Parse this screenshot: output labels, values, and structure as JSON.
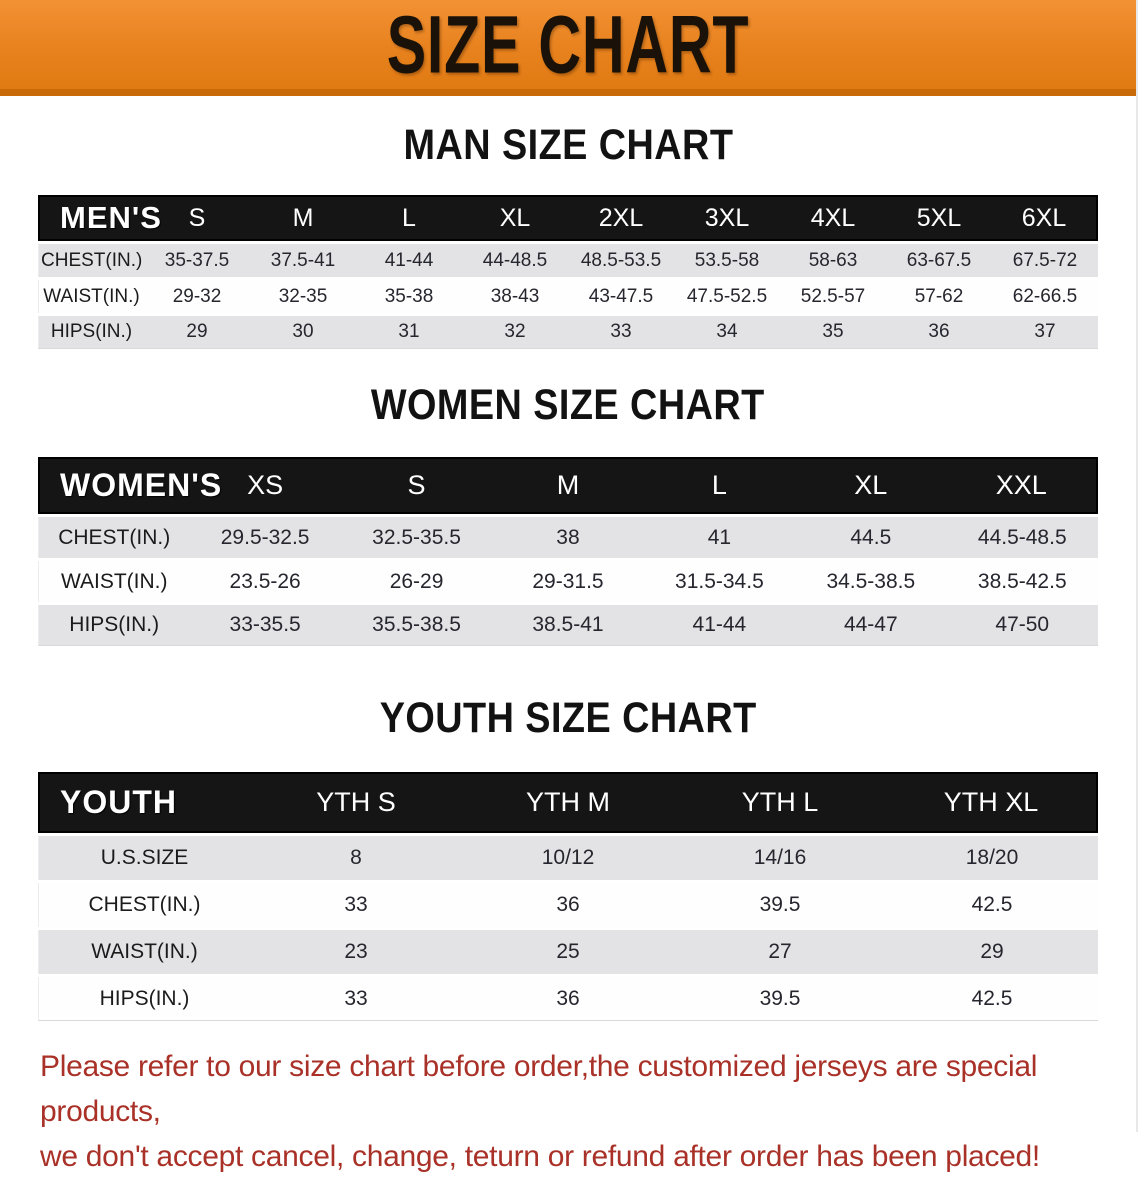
{
  "banner": {
    "title": "SIZE CHART"
  },
  "sections": [
    {
      "id": "men",
      "heading": "MAN SIZE CHART",
      "corner_label": "MEN'S",
      "columns": [
        "S",
        "M",
        "L",
        "XL",
        "2XL",
        "3XL",
        "4XL",
        "5XL",
        "6XL"
      ],
      "rows": [
        {
          "label": "CHEST(IN.)",
          "values": [
            "35-37.5",
            "37.5-41",
            "41-44",
            "44-48.5",
            "48.5-53.5",
            "53.5-58",
            "58-63",
            "63-67.5",
            "67.5-72"
          ]
        },
        {
          "label": "WAIST(IN.)",
          "values": [
            "29-32",
            "32-35",
            "35-38",
            "38-43",
            "43-47.5",
            "47.5-52.5",
            "52.5-57",
            "57-62",
            "62-66.5"
          ]
        },
        {
          "label": "HIPS(IN.)",
          "values": [
            "29",
            "30",
            "31",
            "32",
            "33",
            "34",
            "35",
            "36",
            "37"
          ]
        }
      ]
    },
    {
      "id": "women",
      "heading": "WOMEN SIZE CHART",
      "corner_label": "WOMEN'S",
      "columns": [
        "XS",
        "S",
        "M",
        "L",
        "XL",
        "XXL"
      ],
      "rows": [
        {
          "label": "CHEST(IN.)",
          "values": [
            "29.5-32.5",
            "32.5-35.5",
            "38",
            "41",
            "44.5",
            "44.5-48.5"
          ]
        },
        {
          "label": "WAIST(IN.)",
          "values": [
            "23.5-26",
            "26-29",
            "29-31.5",
            "31.5-34.5",
            "34.5-38.5",
            "38.5-42.5"
          ]
        },
        {
          "label": "HIPS(IN.)",
          "values": [
            "33-35.5",
            "35.5-38.5",
            "38.5-41",
            "41-44",
            "44-47",
            "47-50"
          ]
        }
      ]
    },
    {
      "id": "youth",
      "heading": "YOUTH SIZE CHART",
      "corner_label": "YOUTH",
      "columns": [
        "YTH S",
        "YTH M",
        "YTH L",
        "YTH XL"
      ],
      "rows": [
        {
          "label": "U.S.SIZE",
          "values": [
            "8",
            "10/12",
            "14/16",
            "18/20"
          ]
        },
        {
          "label": "CHEST(IN.)",
          "values": [
            "33",
            "36",
            "39.5",
            "42.5"
          ]
        },
        {
          "label": "WAIST(IN.)",
          "values": [
            "23",
            "25",
            "27",
            "29"
          ]
        },
        {
          "label": "HIPS(IN.)",
          "values": [
            "33",
            "36",
            "39.5",
            "42.5"
          ]
        }
      ]
    }
  ],
  "disclaimer": {
    "line1": "Please refer to our size chart before order,the customized jerseys are special products,",
    "line2": "we don't accept cancel, change, teturn or refund after order has been placed!"
  },
  "theme": {
    "banner_orange": "#E8821E",
    "banner_orange_dark": "#C96A08",
    "header_black": "#151515",
    "row_gray": "#E3E3E5",
    "row_white": "#FEFEFE",
    "disclaimer_red": "#A93128",
    "heading_black": "#121212"
  }
}
